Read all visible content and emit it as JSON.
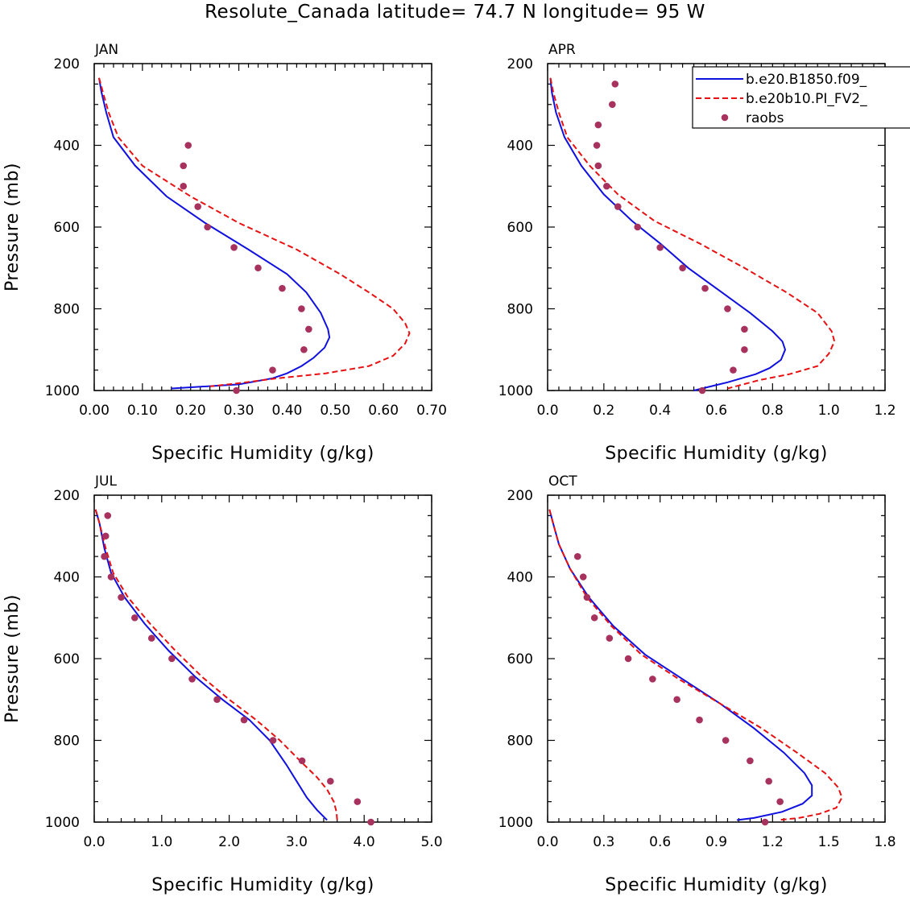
{
  "title": "Resolute_Canada  latitude= 74.7 N longitude= 95 W",
  "colors": {
    "model1": "#1010e0",
    "model2": "#e81010",
    "obs": "#a8325e"
  },
  "chart_data": [
    {
      "type": "line",
      "panel": "JAN",
      "xlabel": "Specific Humidity (g/kg)",
      "ylabel": "Pressure (mb)",
      "xlim": [
        0,
        0.7
      ],
      "ylim": [
        200,
        1000
      ],
      "y_inverted": true,
      "xticks": [
        "0.00",
        "0.10",
        "0.20",
        "0.30",
        "0.40",
        "0.50",
        "0.60",
        "0.70"
      ],
      "xtick_values": [
        0,
        0.1,
        0.2,
        0.3,
        0.4,
        0.5,
        0.6,
        0.7
      ],
      "yticks": [
        "200",
        "400",
        "600",
        "800",
        "1000"
      ],
      "ytick_values": [
        200,
        400,
        600,
        800,
        1000
      ],
      "series": [
        {
          "name": "b.e20.B1850.f09_",
          "style": "solid",
          "color": "#1010e0",
          "x": [
            0.01,
            0.015,
            0.025,
            0.04,
            0.085,
            0.15,
            0.23,
            0.32,
            0.4,
            0.44,
            0.47,
            0.485,
            0.488,
            0.478,
            0.455,
            0.43,
            0.4,
            0.37,
            0.3,
            0.16
          ],
          "y": [
            235,
            270,
            320,
            380,
            450,
            525,
            590,
            655,
            715,
            760,
            810,
            850,
            870,
            895,
            920,
            940,
            958,
            970,
            985,
            995
          ]
        },
        {
          "name": "b.e20b10.PI_FV2_",
          "style": "dashed",
          "color": "#e81010",
          "x": [
            0.01,
            0.018,
            0.03,
            0.05,
            0.1,
            0.2,
            0.3,
            0.42,
            0.51,
            0.57,
            0.62,
            0.645,
            0.654,
            0.645,
            0.62,
            0.57,
            0.48,
            0.38,
            0.3,
            0.24
          ],
          "y": [
            235,
            270,
            320,
            380,
            450,
            525,
            590,
            655,
            715,
            760,
            800,
            835,
            860,
            885,
            915,
            940,
            958,
            970,
            982,
            990
          ]
        },
        {
          "name": "raobs",
          "style": "points",
          "color": "#a8325e",
          "x": [
            0.195,
            0.185,
            0.185,
            0.215,
            0.235,
            0.29,
            0.34,
            0.39,
            0.43,
            0.445,
            0.435,
            0.37,
            0.295
          ],
          "y": [
            400,
            450,
            500,
            550,
            600,
            650,
            700,
            750,
            800,
            850,
            900,
            950,
            1000
          ]
        }
      ]
    },
    {
      "type": "line",
      "panel": "APR",
      "xlabel": "Specific Humidity (g/kg)",
      "ylabel": "",
      "xlim": [
        0,
        1.2
      ],
      "ylim": [
        200,
        1000
      ],
      "y_inverted": true,
      "xticks": [
        "0.0",
        "0.2",
        "0.4",
        "0.6",
        "0.8",
        "1.0",
        "1.2"
      ],
      "xtick_values": [
        0,
        0.2,
        0.4,
        0.6,
        0.8,
        1.0,
        1.2
      ],
      "yticks": [
        "200",
        "400",
        "600",
        "800",
        "1000"
      ],
      "ytick_values": [
        200,
        400,
        600,
        800,
        1000
      ],
      "legend": {
        "position": "top-right",
        "entries": [
          "b.e20.B1850.f09_",
          "b.e20b10.PI_FV2_",
          "raobs"
        ]
      },
      "series": [
        {
          "name": "b.e20.B1850.f09_",
          "style": "solid",
          "color": "#1010e0",
          "x": [
            0.01,
            0.015,
            0.03,
            0.06,
            0.12,
            0.2,
            0.3,
            0.4,
            0.5,
            0.62,
            0.72,
            0.8,
            0.835,
            0.845,
            0.83,
            0.79,
            0.74,
            0.64,
            0.52
          ],
          "y": [
            235,
            270,
            320,
            380,
            450,
            520,
            585,
            640,
            700,
            760,
            810,
            855,
            880,
            900,
            925,
            945,
            960,
            980,
            1000
          ]
        },
        {
          "name": "b.e20b10.PI_FV2_",
          "style": "dashed",
          "color": "#e81010",
          "x": [
            0.01,
            0.02,
            0.04,
            0.07,
            0.15,
            0.25,
            0.38,
            0.54,
            0.7,
            0.85,
            0.96,
            1.01,
            1.02,
            1.0,
            0.96,
            0.86,
            0.75,
            0.64
          ],
          "y": [
            235,
            270,
            320,
            380,
            450,
            520,
            585,
            640,
            700,
            760,
            810,
            855,
            880,
            910,
            940,
            960,
            975,
            995
          ]
        },
        {
          "name": "raobs",
          "style": "points",
          "color": "#a8325e",
          "x": [
            0.24,
            0.23,
            0.18,
            0.175,
            0.18,
            0.21,
            0.25,
            0.32,
            0.4,
            0.48,
            0.56,
            0.64,
            0.7,
            0.7,
            0.66,
            0.55
          ],
          "y": [
            250,
            300,
            350,
            400,
            450,
            500,
            550,
            600,
            650,
            700,
            750,
            800,
            850,
            900,
            950,
            1000
          ]
        }
      ]
    },
    {
      "type": "line",
      "panel": "JUL",
      "xlabel": "Specific Humidity (g/kg)",
      "ylabel": "Pressure (mb)",
      "xlim": [
        0,
        5
      ],
      "ylim": [
        200,
        1000
      ],
      "y_inverted": true,
      "xticks": [
        "0.0",
        "1.0",
        "2.0",
        "3.0",
        "4.0",
        "5.0"
      ],
      "xtick_values": [
        0,
        1,
        2,
        3,
        4,
        5
      ],
      "yticks": [
        "200",
        "400",
        "600",
        "800",
        "1000"
      ],
      "ytick_values": [
        200,
        400,
        600,
        800,
        1000
      ],
      "series": [
        {
          "name": "b.e20.B1850.f09_",
          "style": "solid",
          "color": "#1010e0",
          "x": [
            0.02,
            0.08,
            0.15,
            0.25,
            0.45,
            0.75,
            1.1,
            1.5,
            1.9,
            2.3,
            2.6,
            2.85,
            3.0,
            3.15,
            3.3,
            3.45
          ],
          "y": [
            235,
            270,
            330,
            390,
            450,
            515,
            580,
            645,
            700,
            750,
            800,
            860,
            900,
            940,
            970,
            995
          ]
        },
        {
          "name": "b.e20b10.PI_FV2_",
          "style": "dashed",
          "color": "#e81010",
          "x": [
            0.02,
            0.08,
            0.17,
            0.28,
            0.5,
            0.83,
            1.2,
            1.6,
            2.0,
            2.4,
            2.75,
            3.05,
            3.3,
            3.45,
            3.55,
            3.59,
            3.6
          ],
          "y": [
            235,
            270,
            330,
            390,
            450,
            515,
            580,
            645,
            700,
            750,
            800,
            850,
            890,
            920,
            950,
            975,
            995
          ]
        },
        {
          "name": "raobs",
          "style": "points",
          "color": "#a8325e",
          "x": [
            0.2,
            0.17,
            0.15,
            0.25,
            0.4,
            0.6,
            0.85,
            1.15,
            1.45,
            1.82,
            2.22,
            2.65,
            3.08,
            3.5,
            3.9,
            4.1
          ],
          "y": [
            250,
            300,
            350,
            400,
            450,
            500,
            550,
            600,
            650,
            700,
            750,
            800,
            850,
            900,
            950,
            1000
          ]
        }
      ]
    },
    {
      "type": "line",
      "panel": "OCT",
      "xlabel": "Specific Humidity (g/kg)",
      "ylabel": "",
      "xlim": [
        0,
        1.8
      ],
      "ylim": [
        200,
        1000
      ],
      "y_inverted": true,
      "xticks": [
        "0.0",
        "0.3",
        "0.6",
        "0.9",
        "1.2",
        "1.5",
        "1.8"
      ],
      "xtick_values": [
        0,
        0.3,
        0.6,
        0.9,
        1.2,
        1.5,
        1.8
      ],
      "yticks": [
        "200",
        "400",
        "600",
        "800",
        "1000"
      ],
      "ytick_values": [
        200,
        400,
        600,
        800,
        1000
      ],
      "series": [
        {
          "name": "b.e20.B1850.f09_",
          "style": "solid",
          "color": "#1010e0",
          "x": [
            0.01,
            0.03,
            0.06,
            0.12,
            0.22,
            0.35,
            0.52,
            0.72,
            0.92,
            1.1,
            1.26,
            1.37,
            1.41,
            1.41,
            1.36,
            1.25,
            1.1,
            1.01
          ],
          "y": [
            235,
            270,
            320,
            380,
            450,
            520,
            590,
            650,
            710,
            770,
            830,
            880,
            910,
            935,
            955,
            975,
            990,
            995
          ]
        },
        {
          "name": "b.e20b10.PI_FV2_",
          "style": "dashed",
          "color": "#e81010",
          "x": [
            0.01,
            0.03,
            0.06,
            0.12,
            0.21,
            0.34,
            0.5,
            0.7,
            0.92,
            1.14,
            1.33,
            1.48,
            1.55,
            1.57,
            1.54,
            1.45,
            1.34,
            1.23
          ],
          "y": [
            235,
            270,
            320,
            380,
            450,
            520,
            590,
            650,
            710,
            770,
            830,
            880,
            915,
            940,
            965,
            980,
            990,
            995
          ]
        },
        {
          "name": "raobs",
          "style": "points",
          "color": "#a8325e",
          "x": [
            0.16,
            0.19,
            0.21,
            0.25,
            0.33,
            0.43,
            0.56,
            0.69,
            0.81,
            0.95,
            1.08,
            1.18,
            1.24,
            1.16
          ],
          "y": [
            350,
            400,
            450,
            500,
            550,
            600,
            650,
            700,
            750,
            800,
            850,
            900,
            950,
            1000
          ]
        }
      ]
    }
  ]
}
